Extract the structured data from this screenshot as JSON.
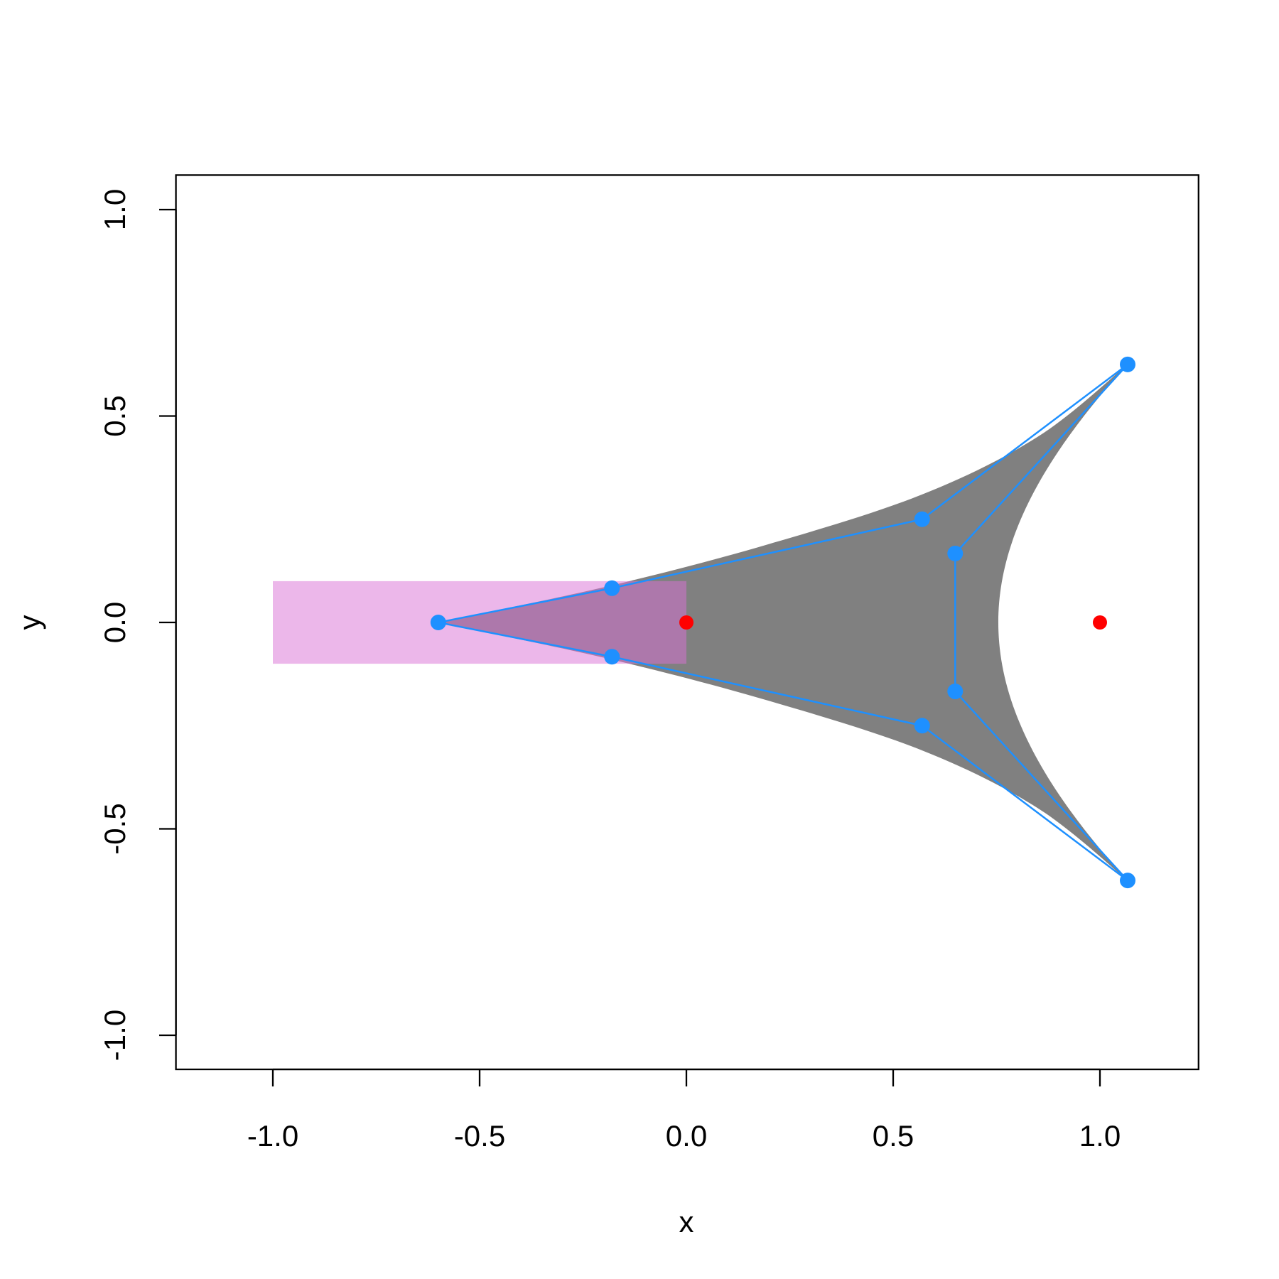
{
  "chart_data": {
    "type": "scatter",
    "title": "",
    "xlabel": "x",
    "ylabel": "y",
    "xlim": [
      -1.24,
      1.24
    ],
    "ylim": [
      -1.08,
      1.08
    ],
    "grid": false,
    "x_ticks": [
      "-1.0",
      "-0.5",
      "0.0",
      "0.5",
      "1.0"
    ],
    "x_tick_values": [
      -1,
      -0.5,
      0,
      0.5,
      1
    ],
    "y_ticks": [
      "-1.0",
      "-0.5",
      "0.0",
      "0.5",
      "1.0"
    ],
    "y_tick_values": [
      -1,
      -0.5,
      0,
      0.5,
      1
    ],
    "rectangle": {
      "x": [
        -1.0,
        0.0
      ],
      "y": [
        -0.1,
        0.1
      ],
      "color": "#DA70D6",
      "opacity": 0.5
    },
    "filled_shape": {
      "color": "#808080",
      "outer_upper": [
        [
          -0.6,
          0
        ],
        [
          -0.18,
          0.09
        ],
        [
          0.2,
          0.19
        ],
        [
          0.57,
          0.31
        ],
        [
          0.85,
          0.45
        ],
        [
          1.067,
          0.625
        ]
      ],
      "inner_bezier": [
        [
          1.067,
          0.625
        ],
        [
          0.65,
          0.167
        ],
        [
          0.65,
          -0.167
        ],
        [
          1.067,
          -0.625
        ]
      ]
    },
    "control_points": {
      "color": "#1E90FF",
      "x": [
        -0.6,
        -0.18,
        0.57,
        1.067,
        0.65,
        0.65,
        1.067,
        0.57,
        -0.18
      ],
      "y": [
        0,
        0.083,
        0.25,
        0.625,
        0.167,
        -0.167,
        -0.625,
        -0.25,
        -0.083
      ]
    },
    "red_points": {
      "color": "#FF0000",
      "x": [
        0,
        1
      ],
      "y": [
        0,
        0
      ]
    }
  }
}
